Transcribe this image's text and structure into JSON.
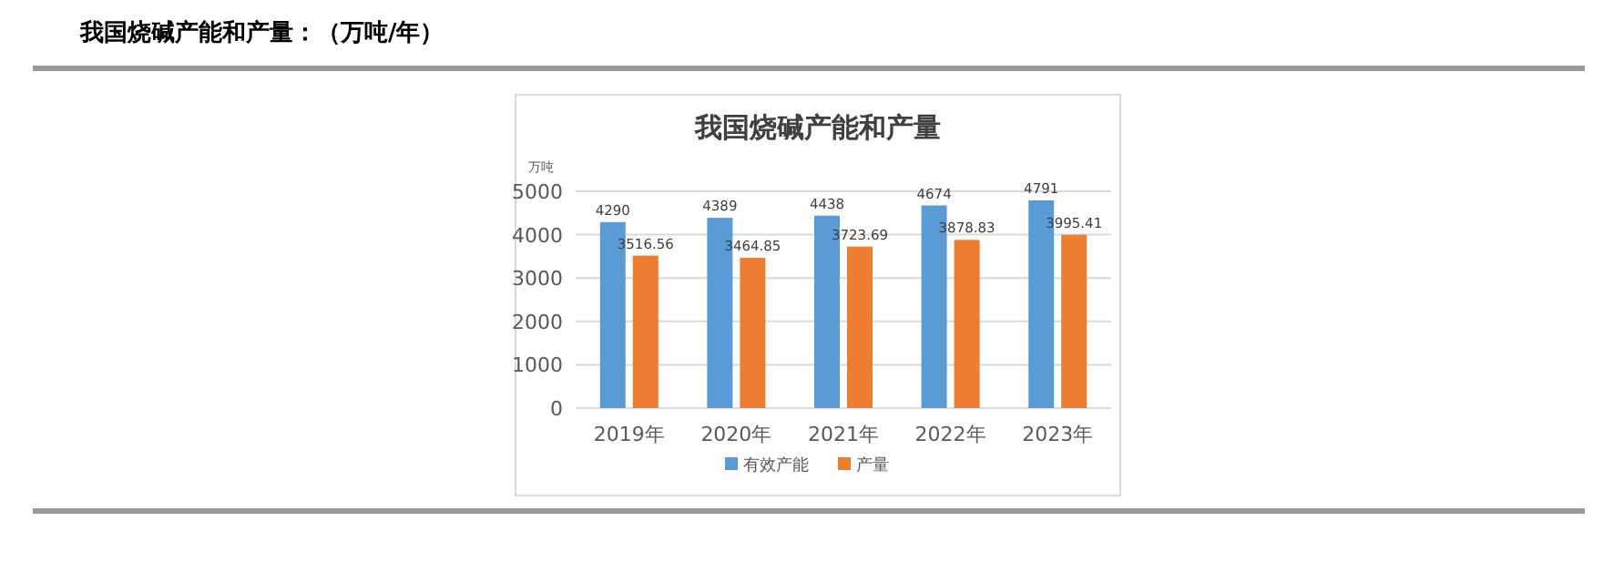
{
  "chart_data": {
    "type": "bar",
    "title": "我国烧碱产能和产量：（万吨/年）",
    "subtitle": "我国烧碱产能和产量",
    "ylabel": "万吨",
    "categories": [
      "2019年",
      "2020年",
      "2021年",
      "2022年",
      "2023年"
    ],
    "series": [
      {
        "name": "有效产能",
        "color": "#5b9bd5",
        "values": [
          4290,
          4389,
          4438,
          4674,
          4791
        ]
      },
      {
        "name": "产量",
        "color": "#ed7d31",
        "values": [
          3516.56,
          3464.85,
          3723.69,
          3878.83,
          3995.41
        ]
      }
    ],
    "ylim": [
      0,
      5000
    ],
    "yticks": [
      0,
      1000,
      2000,
      3000,
      4000,
      5000
    ],
    "grid": "y",
    "legend": "bottom",
    "data_labels": true
  }
}
